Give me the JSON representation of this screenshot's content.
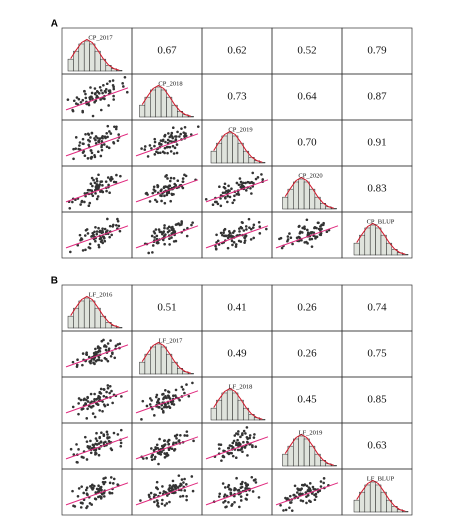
{
  "chart_data": [
    {
      "type": "pairs",
      "panel": "A",
      "variables": [
        "CP_2017",
        "CP_2018",
        "CP_2019",
        "CP_2020",
        "CP_BLUP"
      ],
      "correlations": [
        [
          0.67,
          0.62,
          0.52,
          0.79
        ],
        [
          0.73,
          0.64,
          0.87
        ],
        [
          0.7,
          0.91
        ],
        [
          0.83
        ]
      ],
      "correlation_labels": [
        [
          "0.67",
          "0.62",
          "0.52",
          "0.79"
        ],
        [
          "0.73",
          "0.64",
          "0.87"
        ],
        [
          "0.70",
          "0.91"
        ],
        [
          "0.83"
        ]
      ]
    },
    {
      "type": "pairs",
      "panel": "B",
      "variables": [
        "LF_2016",
        "LF_2017",
        "LF_2018",
        "LF_2019",
        "LF_BLUP"
      ],
      "correlations": [
        [
          0.51,
          0.41,
          0.26,
          0.74
        ],
        [
          0.49,
          0.26,
          0.75
        ],
        [
          0.45,
          0.85
        ],
        [
          0.63
        ]
      ],
      "correlation_labels": [
        [
          "0.51",
          "0.41",
          "0.26",
          "0.74"
        ],
        [
          "0.49",
          "0.26",
          "0.75"
        ],
        [
          "0.45",
          "0.85"
        ],
        [
          "0.63"
        ]
      ]
    }
  ]
}
